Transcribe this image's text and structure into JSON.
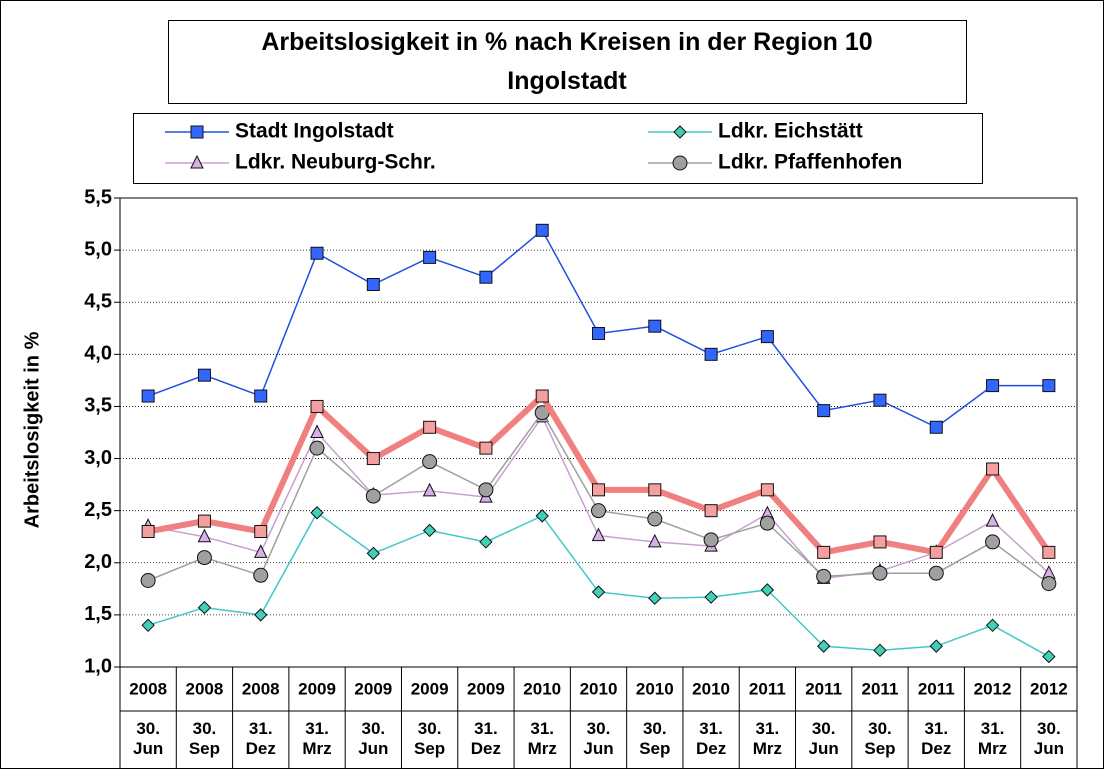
{
  "chart_data": {
    "type": "line",
    "title": "Arbeitslosigkeit in % nach Kreisen in der Region 10 Ingolstadt",
    "y_label": "Arbeitslosigkeit in %",
    "categories": [
      {
        "year": "2008",
        "date": "30. Jun"
      },
      {
        "year": "2008",
        "date": "30. Sep"
      },
      {
        "year": "2008",
        "date": "31. Dez"
      },
      {
        "year": "2009",
        "date": "31. Mrz"
      },
      {
        "year": "2009",
        "date": "30. Jun"
      },
      {
        "year": "2009",
        "date": "30. Sep"
      },
      {
        "year": "2009",
        "date": "31. Dez"
      },
      {
        "year": "2010",
        "date": "31. Mrz"
      },
      {
        "year": "2010",
        "date": "30. Jun"
      },
      {
        "year": "2010",
        "date": "30. Sep"
      },
      {
        "year": "2010",
        "date": "31. Dez"
      },
      {
        "year": "2011",
        "date": "31. Mrz"
      },
      {
        "year": "2011",
        "date": "30. Jun"
      },
      {
        "year": "2011",
        "date": "30. Sep"
      },
      {
        "year": "2011",
        "date": "31. Dez"
      },
      {
        "year": "2012",
        "date": "31. Mrz"
      },
      {
        "year": "2012",
        "date": "30. Jun"
      }
    ],
    "series": [
      {
        "name": "Stadt Ingolstadt",
        "color": "#2050e0",
        "marker": "square",
        "marker_color": "#3366ff",
        "values": [
          3.6,
          3.8,
          3.6,
          4.97,
          4.67,
          4.93,
          4.74,
          5.19,
          4.2,
          4.27,
          4.0,
          4.17,
          3.46,
          3.56,
          3.3,
          3.7,
          3.7
        ]
      },
      {
        "name": "Ldkr. Eichstätt",
        "color": "#40c8c8",
        "marker": "diamond",
        "marker_color": "#40d0b8",
        "values": [
          1.4,
          1.57,
          1.5,
          2.48,
          2.09,
          2.31,
          2.2,
          2.45,
          1.72,
          1.66,
          1.67,
          1.74,
          1.2,
          1.16,
          1.2,
          1.4,
          1.1
        ]
      },
      {
        "name": "Ldkr. Neuburg-Schr.",
        "color": "#c8a0d0",
        "marker": "triangle",
        "marker_color": "#d8b0e8",
        "values": [
          2.35,
          2.25,
          2.1,
          3.25,
          2.65,
          2.69,
          2.63,
          3.4,
          2.26,
          2.2,
          2.16,
          2.47,
          1.85,
          1.92,
          2.1,
          2.4,
          1.9
        ]
      },
      {
        "name": "Ldkr. Pfaffenhofen",
        "color": "#a0a0a0",
        "marker": "circle",
        "marker_color": "#a0a0a0",
        "values": [
          1.83,
          2.05,
          1.88,
          3.1,
          2.64,
          2.97,
          2.7,
          3.44,
          2.5,
          2.42,
          2.22,
          2.38,
          1.87,
          1.9,
          1.9,
          2.2,
          1.8
        ]
      },
      {
        "color": "#f08080",
        "marker": "square",
        "marker_color": "#f4a0a0",
        "line_width": 6,
        "values": [
          2.3,
          2.4,
          2.3,
          3.5,
          3.0,
          3.3,
          3.1,
          3.6,
          2.7,
          2.7,
          2.5,
          2.7,
          2.1,
          2.2,
          2.1,
          2.9,
          2.1
        ]
      }
    ],
    "ylim": [
      1.0,
      5.5
    ],
    "yticks": [
      {
        "value": 1.0,
        "label": "1,0"
      },
      {
        "value": 1.5,
        "label": "1,5"
      },
      {
        "value": 2.0,
        "label": "2,0"
      },
      {
        "value": 2.5,
        "label": "2,5"
      },
      {
        "value": 3.0,
        "label": "3,0"
      },
      {
        "value": 3.5,
        "label": "3,5"
      },
      {
        "value": 4.0,
        "label": "4,0"
      },
      {
        "value": 4.5,
        "label": "4,5"
      },
      {
        "value": 5.0,
        "label": "5,0"
      },
      {
        "value": 5.5,
        "label": "5,5"
      }
    ],
    "grid": true
  }
}
